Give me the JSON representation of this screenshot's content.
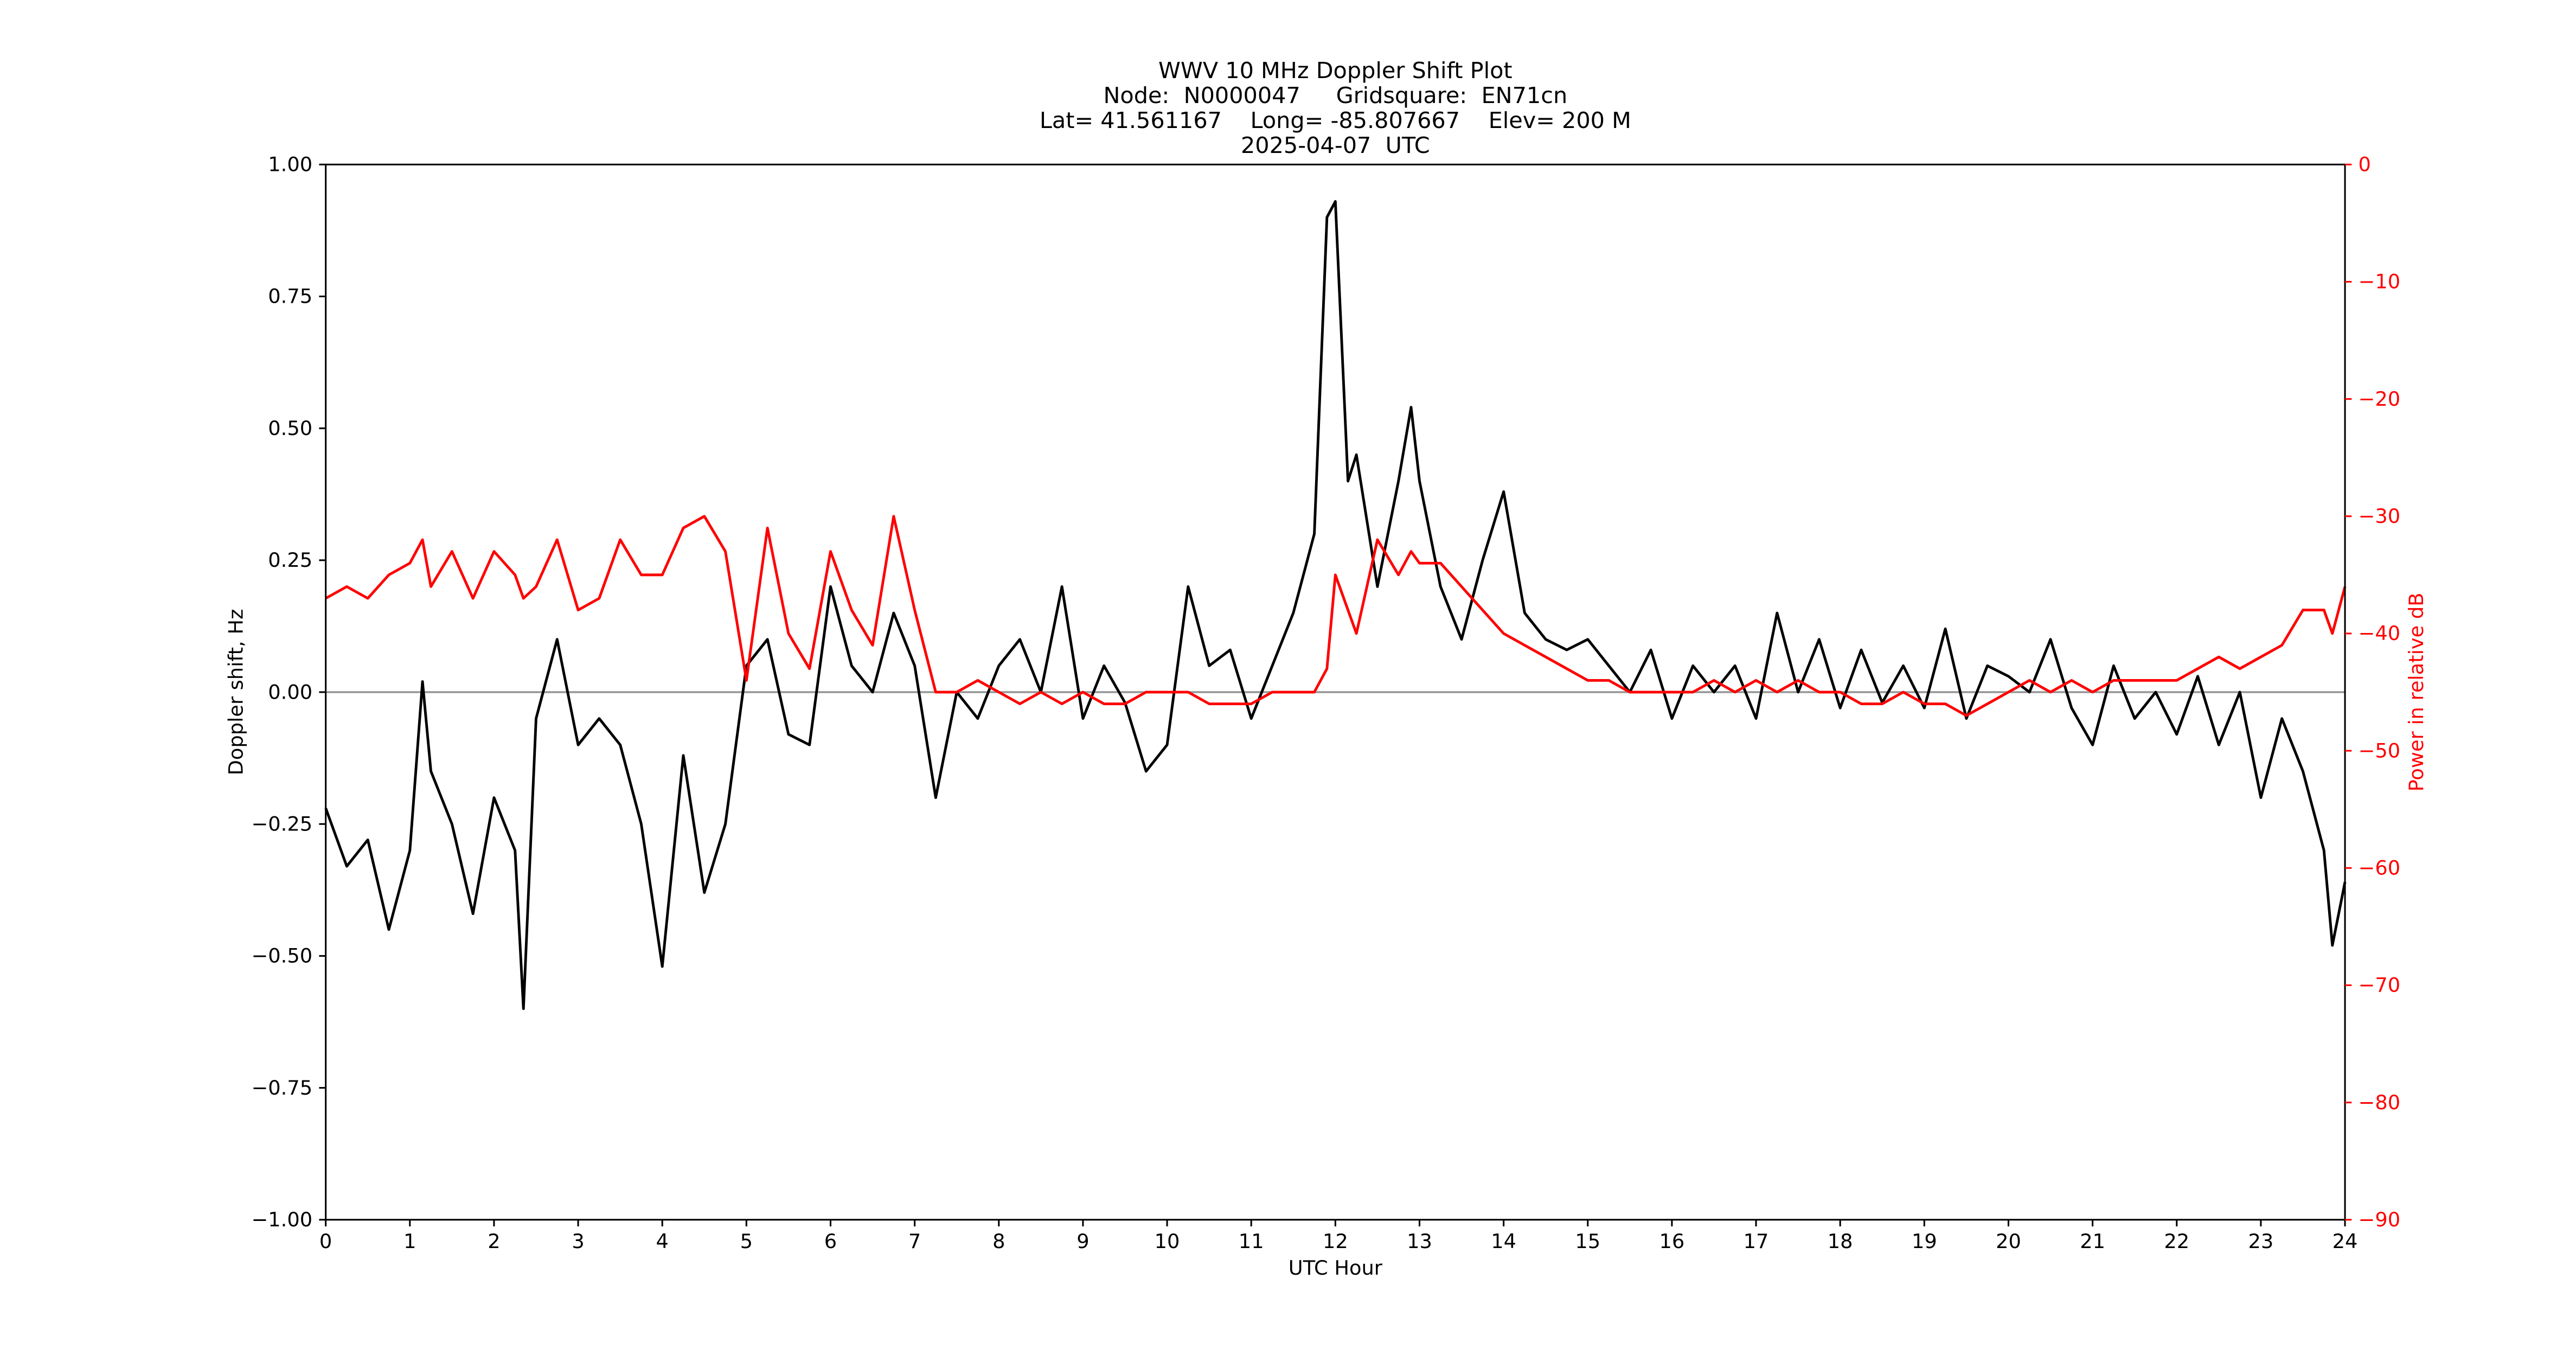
{
  "chart_data": {
    "type": "line",
    "title": [
      "WWV 10 MHz Doppler Shift Plot",
      "Node:  N0000047     Gridsquare:  EN71cn",
      "Lat= 41.561167    Long= -85.807667    Elev= 200 M",
      "2025-04-07  UTC"
    ],
    "x_label": "UTC Hour",
    "y_label": "Doppler shift, Hz",
    "y2_label": "Power in relative dB",
    "x": [
      0,
      0.25,
      0.5,
      0.75,
      1,
      1.15,
      1.25,
      1.5,
      1.75,
      2,
      2.25,
      2.35,
      2.5,
      2.75,
      3,
      3.25,
      3.5,
      3.75,
      4,
      4.25,
      4.5,
      4.75,
      5,
      5.25,
      5.5,
      5.75,
      6,
      6.25,
      6.5,
      6.75,
      7,
      7.25,
      7.5,
      7.75,
      8,
      8.25,
      8.5,
      8.75,
      9,
      9.25,
      9.5,
      9.75,
      10,
      10.25,
      10.5,
      10.75,
      11,
      11.25,
      11.5,
      11.75,
      11.9,
      12,
      12.15,
      12.25,
      12.5,
      12.75,
      12.9,
      13,
      13.25,
      13.5,
      13.75,
      14,
      14.25,
      14.5,
      14.75,
      15,
      15.25,
      15.5,
      15.75,
      16,
      16.25,
      16.5,
      16.75,
      17,
      17.25,
      17.5,
      17.75,
      18,
      18.25,
      18.5,
      18.75,
      19,
      19.25,
      19.5,
      19.75,
      20,
      20.25,
      20.5,
      20.75,
      21,
      21.25,
      21.5,
      21.75,
      22,
      22.25,
      22.5,
      22.75,
      23,
      23.25,
      23.5,
      23.75,
      23.85,
      24
    ],
    "series": [
      {
        "color": "#000000",
        "axis": "y",
        "values": [
          -0.22,
          -0.33,
          -0.28,
          -0.45,
          -0.3,
          0.02,
          -0.15,
          -0.25,
          -0.42,
          -0.2,
          -0.3,
          -0.6,
          -0.05,
          0.1,
          -0.1,
          -0.05,
          -0.1,
          -0.25,
          -0.52,
          -0.12,
          -0.38,
          -0.25,
          0.05,
          0.1,
          -0.08,
          -0.1,
          0.2,
          0.05,
          0,
          0.15,
          0.05,
          -0.2,
          0,
          -0.05,
          0.05,
          0.1,
          0,
          0.2,
          -0.05,
          0.05,
          -0.02,
          -0.15,
          -0.1,
          0.2,
          0.05,
          0.08,
          -0.05,
          0.05,
          0.15,
          0.3,
          0.9,
          0.93,
          0.4,
          0.45,
          0.2,
          0.4,
          0.54,
          0.4,
          0.2,
          0.1,
          0.25,
          0.38,
          0.15,
          0.1,
          0.08,
          0.1,
          0.05,
          0,
          0.08,
          -0.05,
          0.05,
          0,
          0.05,
          -0.05,
          0.15,
          0,
          0.1,
          -0.03,
          0.08,
          -0.02,
          0.05,
          -0.03,
          0.12,
          -0.05,
          0.05,
          0.03,
          0,
          0.1,
          -0.03,
          -0.1,
          0.05,
          -0.05,
          0,
          -0.08,
          0.03,
          -0.1,
          0,
          -0.2,
          -0.05,
          -0.15,
          -0.3,
          -0.48,
          -0.36
        ]
      },
      {
        "color": "#ff0000",
        "axis": "y2",
        "values": [
          -37,
          -36,
          -37,
          -35,
          -34,
          -32,
          -36,
          -33,
          -37,
          -33,
          -35,
          -37,
          -36,
          -32,
          -38,
          -37,
          -32,
          -35,
          -35,
          -31,
          -30,
          -33,
          -44,
          -31,
          -40,
          -43,
          -33,
          -38,
          -41,
          -30,
          -38,
          -45,
          -45,
          -44,
          -45,
          -46,
          -45,
          -46,
          -45,
          -46,
          -46,
          -45,
          -45,
          -45,
          -46,
          -46,
          -46,
          -45,
          -45,
          -45,
          -43,
          -35,
          -38,
          -40,
          -32,
          -35,
          -33,
          -34,
          -34,
          -36,
          -38,
          -40,
          -41,
          -42,
          -43,
          -44,
          -44,
          -45,
          -45,
          -45,
          -45,
          -44,
          -45,
          -44,
          -45,
          -44,
          -45,
          -45,
          -46,
          -46,
          -45,
          -46,
          -46,
          -47,
          -46,
          -45,
          -44,
          -45,
          -44,
          -45,
          -44,
          -44,
          -44,
          -44,
          -43,
          -42,
          -43,
          -42,
          -41,
          -38,
          -38,
          -40,
          -36
        ]
      }
    ],
    "xlim": [
      0,
      24
    ],
    "xticks": [
      0,
      1,
      2,
      3,
      4,
      5,
      6,
      7,
      8,
      9,
      10,
      11,
      12,
      13,
      14,
      15,
      16,
      17,
      18,
      19,
      20,
      21,
      22,
      23,
      24
    ],
    "ylim": [
      -1,
      1
    ],
    "yticks": [
      {
        "value": -1,
        "label": "−1.00"
      },
      {
        "value": -0.75,
        "label": "−0.75"
      },
      {
        "value": -0.5,
        "label": "−0.50"
      },
      {
        "value": -0.25,
        "label": "−0.25"
      },
      {
        "value": 0,
        "label": "0.00"
      },
      {
        "value": 0.25,
        "label": "0.25"
      },
      {
        "value": 0.5,
        "label": "0.50"
      },
      {
        "value": 0.75,
        "label": "0.75"
      },
      {
        "value": 1,
        "label": "1.00"
      }
    ],
    "y2lim": [
      -90,
      0
    ],
    "y2ticks": [
      {
        "value": -90,
        "label": "−90"
      },
      {
        "value": -80,
        "label": "−80"
      },
      {
        "value": -70,
        "label": "−70"
      },
      {
        "value": -60,
        "label": "−60"
      },
      {
        "value": -50,
        "label": "−50"
      },
      {
        "value": -40,
        "label": "−40"
      },
      {
        "value": -30,
        "label": "−30"
      },
      {
        "value": -20,
        "label": "−20"
      },
      {
        "value": -10,
        "label": "−10"
      },
      0
    ],
    "hline": 0,
    "hline_color": "#999999",
    "grid": false
  }
}
